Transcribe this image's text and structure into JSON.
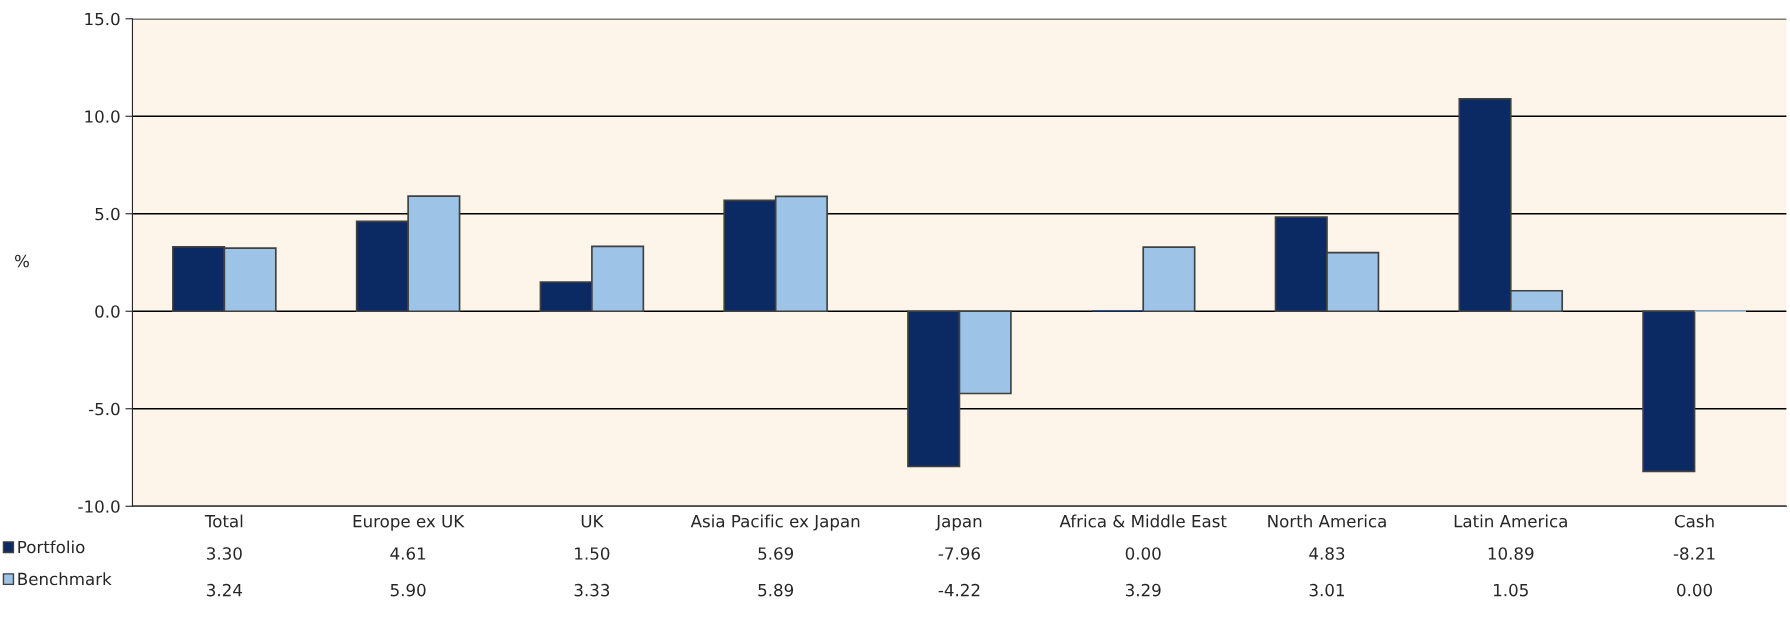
{
  "chart_data": {
    "type": "bar",
    "ylabel": "%",
    "categories": [
      "Total",
      "Europe ex UK",
      "UK",
      "Asia Pacific ex Japan",
      "Japan",
      "Africa & Middle East",
      "North America",
      "Latin America",
      "Cash"
    ],
    "series": [
      {
        "name": "Portfolio",
        "color": "#0b2a63",
        "values": [
          3.3,
          4.61,
          1.5,
          5.69,
          -7.96,
          0.0,
          4.83,
          10.89,
          -8.21
        ],
        "value_labels": [
          "3.30",
          "4.61",
          "1.50",
          "5.69",
          "-7.96",
          "0.00",
          "4.83",
          "10.89",
          "-8.21"
        ]
      },
      {
        "name": "Benchmark",
        "color": "#9dc3e6",
        "values": [
          3.24,
          5.9,
          3.33,
          5.89,
          -4.22,
          3.29,
          3.01,
          1.05,
          0.0
        ],
        "value_labels": [
          "3.24",
          "5.90",
          "3.33",
          "5.89",
          "-4.22",
          "3.29",
          "3.01",
          "1.05",
          "0.00"
        ]
      }
    ],
    "ylim": [
      -10,
      15
    ],
    "yticks": [
      {
        "value": -10,
        "label": "-10.0"
      },
      {
        "value": -5,
        "label": "-5.0"
      },
      {
        "value": 0,
        "label": "0.0"
      },
      {
        "value": 5,
        "label": "5.0"
      },
      {
        "value": 10,
        "label": "10.0"
      },
      {
        "value": 15,
        "label": "15.0"
      }
    ],
    "grid": "y",
    "legend": "bottom left"
  }
}
